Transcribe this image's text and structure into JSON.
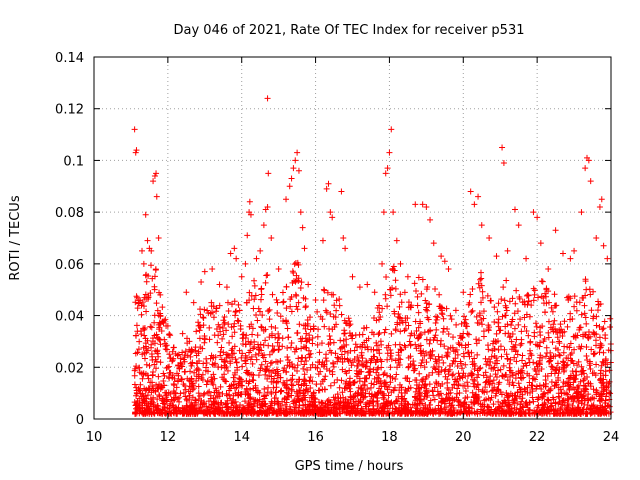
{
  "chart_data": {
    "type": "scatter",
    "title": "Day 046 of 2021, Rate Of TEC Index for receiver p531",
    "xlabel": "GPS time / hours",
    "ylabel": "ROTI / TECUs",
    "xlim": [
      10,
      24
    ],
    "ylim": [
      0,
      0.14
    ],
    "x_ticks": [
      10,
      12,
      14,
      16,
      18,
      20,
      22,
      24
    ],
    "x_tick_labels": [
      "10",
      "12",
      "14",
      "16",
      "18",
      "20",
      "22",
      "24"
    ],
    "y_ticks": [
      0,
      0.02,
      0.04,
      0.06,
      0.08,
      0.1,
      0.12,
      0.14
    ],
    "y_tick_labels": [
      "0",
      "0.02",
      "0.04",
      "0.06",
      "0.08",
      "0.1",
      "0.12",
      "0.14"
    ],
    "grid": true,
    "marker": "+",
    "color": "#ff0000",
    "series": [
      {
        "name": "ROTI",
        "points": [
          [
            11.1,
            0.112
          ],
          [
            11.15,
            0.104
          ],
          [
            11.13,
            0.103
          ],
          [
            11.3,
            0.065
          ],
          [
            11.35,
            0.06
          ],
          [
            11.4,
            0.079
          ],
          [
            11.45,
            0.069
          ],
          [
            11.5,
            0.066
          ],
          [
            11.55,
            0.065
          ],
          [
            11.6,
            0.092
          ],
          [
            11.65,
            0.094
          ],
          [
            11.68,
            0.095
          ],
          [
            11.7,
            0.086
          ],
          [
            11.75,
            0.07
          ],
          [
            11.8,
            0.04
          ],
          [
            11.9,
            0.038
          ],
          [
            12.0,
            0.036
          ],
          [
            12.4,
            0.033
          ],
          [
            12.5,
            0.049
          ],
          [
            12.7,
            0.045
          ],
          [
            12.9,
            0.053
          ],
          [
            13.0,
            0.057
          ],
          [
            13.2,
            0.058
          ],
          [
            13.4,
            0.052
          ],
          [
            13.6,
            0.051
          ],
          [
            13.7,
            0.064
          ],
          [
            13.8,
            0.066
          ],
          [
            13.85,
            0.062
          ],
          [
            14.0,
            0.055
          ],
          [
            14.1,
            0.06
          ],
          [
            14.15,
            0.071
          ],
          [
            14.2,
            0.08
          ],
          [
            14.22,
            0.084
          ],
          [
            14.25,
            0.079
          ],
          [
            14.4,
            0.062
          ],
          [
            14.5,
            0.065
          ],
          [
            14.6,
            0.075
          ],
          [
            14.65,
            0.081
          ],
          [
            14.7,
            0.082
          ],
          [
            14.72,
            0.095
          ],
          [
            14.7,
            0.124
          ],
          [
            14.8,
            0.07
          ],
          [
            15.0,
            0.058
          ],
          [
            15.2,
            0.085
          ],
          [
            15.3,
            0.09
          ],
          [
            15.35,
            0.093
          ],
          [
            15.4,
            0.097
          ],
          [
            15.45,
            0.1
          ],
          [
            15.5,
            0.103
          ],
          [
            15.55,
            0.096
          ],
          [
            15.6,
            0.08
          ],
          [
            15.65,
            0.074
          ],
          [
            15.7,
            0.066
          ],
          [
            15.8,
            0.052
          ],
          [
            16.0,
            0.046
          ],
          [
            16.2,
            0.069
          ],
          [
            16.3,
            0.089
          ],
          [
            16.35,
            0.091
          ],
          [
            16.4,
            0.08
          ],
          [
            16.45,
            0.078
          ],
          [
            16.7,
            0.088
          ],
          [
            16.75,
            0.07
          ],
          [
            16.8,
            0.066
          ],
          [
            17.0,
            0.055
          ],
          [
            17.2,
            0.051
          ],
          [
            17.4,
            0.052
          ],
          [
            17.6,
            0.049
          ],
          [
            17.8,
            0.06
          ],
          [
            17.85,
            0.08
          ],
          [
            17.9,
            0.095
          ],
          [
            17.95,
            0.097
          ],
          [
            18.0,
            0.103
          ],
          [
            18.05,
            0.112
          ],
          [
            18.1,
            0.08
          ],
          [
            18.2,
            0.069
          ],
          [
            18.3,
            0.06
          ],
          [
            18.5,
            0.055
          ],
          [
            18.7,
            0.083
          ],
          [
            18.9,
            0.083
          ],
          [
            19.0,
            0.082
          ],
          [
            19.1,
            0.077
          ],
          [
            19.2,
            0.068
          ],
          [
            19.4,
            0.063
          ],
          [
            19.5,
            0.061
          ],
          [
            19.6,
            0.058
          ],
          [
            19.8,
            0.042
          ],
          [
            20.0,
            0.049
          ],
          [
            20.2,
            0.088
          ],
          [
            20.3,
            0.083
          ],
          [
            20.4,
            0.086
          ],
          [
            20.5,
            0.075
          ],
          [
            20.7,
            0.07
          ],
          [
            20.9,
            0.063
          ],
          [
            21.05,
            0.105
          ],
          [
            21.1,
            0.099
          ],
          [
            21.2,
            0.065
          ],
          [
            21.4,
            0.081
          ],
          [
            21.5,
            0.075
          ],
          [
            21.7,
            0.062
          ],
          [
            21.9,
            0.08
          ],
          [
            22.0,
            0.078
          ],
          [
            22.1,
            0.068
          ],
          [
            22.3,
            0.058
          ],
          [
            22.5,
            0.073
          ],
          [
            22.7,
            0.064
          ],
          [
            22.9,
            0.062
          ],
          [
            23.0,
            0.065
          ],
          [
            23.2,
            0.08
          ],
          [
            23.3,
            0.097
          ],
          [
            23.35,
            0.101
          ],
          [
            23.4,
            0.1
          ],
          [
            23.45,
            0.092
          ],
          [
            23.6,
            0.07
          ],
          [
            23.7,
            0.082
          ],
          [
            23.75,
            0.085
          ],
          [
            23.8,
            0.067
          ],
          [
            23.9,
            0.062
          ]
        ],
        "envelope": {
          "description_points": "dense band of samples between x=11.1 and x=24, values mostly from 0.002 to the hourly maximum below",
          "hours": [
            11.1,
            11.3,
            11.5,
            11.7,
            11.9,
            12.1,
            12.3,
            12.5,
            12.7,
            12.9,
            13.1,
            13.3,
            13.5,
            13.7,
            13.9,
            14.1,
            14.3,
            14.5,
            14.7,
            14.9,
            15.1,
            15.3,
            15.5,
            15.7,
            15.9,
            16.1,
            16.3,
            16.5,
            16.7,
            16.9,
            17.1,
            17.3,
            17.5,
            17.7,
            17.9,
            18.1,
            18.3,
            18.5,
            18.7,
            18.9,
            19.1,
            19.3,
            19.5,
            19.7,
            19.9,
            20.1,
            20.3,
            20.5,
            20.7,
            20.9,
            21.1,
            21.3,
            21.5,
            21.7,
            21.9,
            22.1,
            22.3,
            22.5,
            22.7,
            22.9,
            23.1,
            23.3,
            23.5,
            23.7,
            23.95
          ],
          "typical_max": [
            0.047,
            0.055,
            0.06,
            0.058,
            0.04,
            0.033,
            0.025,
            0.035,
            0.03,
            0.045,
            0.048,
            0.046,
            0.042,
            0.05,
            0.045,
            0.048,
            0.055,
            0.05,
            0.06,
            0.045,
            0.05,
            0.06,
            0.062,
            0.05,
            0.04,
            0.042,
            0.055,
            0.05,
            0.048,
            0.04,
            0.032,
            0.035,
            0.04,
            0.045,
            0.055,
            0.06,
            0.052,
            0.048,
            0.055,
            0.055,
            0.05,
            0.052,
            0.045,
            0.04,
            0.035,
            0.045,
            0.06,
            0.058,
            0.05,
            0.045,
            0.055,
            0.052,
            0.05,
            0.048,
            0.052,
            0.055,
            0.05,
            0.048,
            0.045,
            0.05,
            0.048,
            0.055,
            0.05,
            0.045,
            0.04
          ]
        }
      }
    ]
  }
}
